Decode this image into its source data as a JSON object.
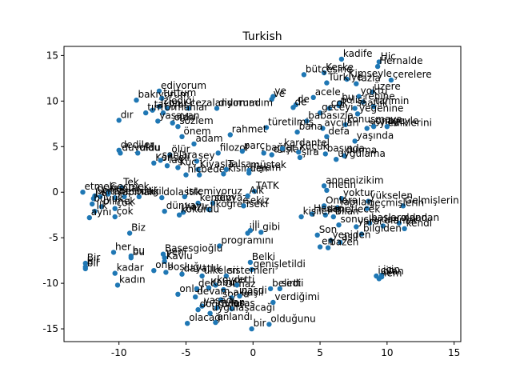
{
  "chart_data": {
    "type": "scatter",
    "title": "Turkish",
    "xlabel": "",
    "ylabel": "",
    "xlim": [
      -14.1,
      15.5
    ],
    "ylim": [
      -16.4,
      16.0
    ],
    "xticks": [
      -10,
      -5,
      0,
      5,
      10,
      15
    ],
    "yticks": [
      -15,
      -10,
      -5,
      0,
      5,
      10,
      15
    ],
    "grid": false,
    "point_color": "#1f77b4",
    "points": [
      {
        "x": 6.6,
        "y": 14.6,
        "label": "kadife"
      },
      {
        "x": 9.4,
        "y": 14.3,
        "label": "Hiç"
      },
      {
        "x": 9.3,
        "y": 13.8,
        "label": "Hernalde"
      },
      {
        "x": 5.3,
        "y": 13.1,
        "label": "Keske"
      },
      {
        "x": 3.8,
        "y": 12.9,
        "label": "bütçesine"
      },
      {
        "x": 7.0,
        "y": 12.4,
        "label": "Kimseyle"
      },
      {
        "x": 10.3,
        "y": 12.3,
        "label": "çerelere"
      },
      {
        "x": 5.5,
        "y": 12.0,
        "label": "Türkiye"
      },
      {
        "x": 7.7,
        "y": 11.9,
        "label": "fazla"
      },
      {
        "x": 8.9,
        "y": 11.0,
        "label": "üzere"
      },
      {
        "x": -7.0,
        "y": 11.1,
        "label": "ediyorum"
      },
      {
        "x": -8.7,
        "y": 10.1,
        "label": "bakıyorum"
      },
      {
        "x": -6.8,
        "y": 10.3,
        "label": "tuttum"
      },
      {
        "x": 1.5,
        "y": 10.5,
        "label": "ve"
      },
      {
        "x": 1.4,
        "y": 10.2,
        "label": "ve"
      },
      {
        "x": 3.2,
        "y": 9.6,
        "label": "de"
      },
      {
        "x": 3.0,
        "y": 9.3,
        "label": "de"
      },
      {
        "x": 4.5,
        "y": 10.4,
        "label": "acele"
      },
      {
        "x": 7.9,
        "y": 10.5,
        "label": "yoktu"
      },
      {
        "x": 8.2,
        "y": 9.9,
        "label": "rehine"
      },
      {
        "x": 6.5,
        "y": 9.8,
        "label": "bu"
      },
      {
        "x": 6.4,
        "y": 9.5,
        "label": "polisi"
      },
      {
        "x": 5.7,
        "y": 9.2,
        "label": "çok"
      },
      {
        "x": 7.6,
        "y": 9.2,
        "label": "saatlik"
      },
      {
        "x": 9.0,
        "y": 9.4,
        "label": "tahmin"
      },
      {
        "x": -7.0,
        "y": 9.4,
        "label": "izlediği"
      },
      {
        "x": -7.5,
        "y": 9.0,
        "label": "takiyor"
      },
      {
        "x": -6.4,
        "y": 9.2,
        "label": "onu"
      },
      {
        "x": -4.8,
        "y": 9.2,
        "label": "cezalandırmadım"
      },
      {
        "x": -2.7,
        "y": 9.2,
        "label": "diyorum"
      },
      {
        "x": -8.0,
        "y": 8.7,
        "label": "tım"
      },
      {
        "x": -6.7,
        "y": 8.7,
        "label": "ormanlar"
      },
      {
        "x": -10.0,
        "y": 7.9,
        "label": "dır"
      },
      {
        "x": -7.1,
        "y": 7.8,
        "label": "yaşayan"
      },
      {
        "x": -6.0,
        "y": 7.6,
        "label": "oldu"
      },
      {
        "x": -5.6,
        "y": 7.2,
        "label": "sözlem"
      },
      {
        "x": 5.0,
        "y": 8.7,
        "label": "geceyi"
      },
      {
        "x": 7.8,
        "y": 8.6,
        "label": "yeğenine"
      },
      {
        "x": 4.0,
        "y": 7.8,
        "label": "babasızla"
      },
      {
        "x": 6.9,
        "y": 7.4,
        "label": "konuşmaya"
      },
      {
        "x": 8.5,
        "y": 7.0,
        "label": "söylediklerini"
      },
      {
        "x": 9.0,
        "y": 7.2,
        "label": "onay"
      },
      {
        "x": 10.0,
        "y": 7.2,
        "label": "tgeyle"
      },
      {
        "x": 5.2,
        "y": 7.0,
        "label": "avcıları"
      },
      {
        "x": 1.0,
        "y": 7.1,
        "label": "türetilmiş"
      },
      {
        "x": 3.3,
        "y": 6.6,
        "label": "bana"
      },
      {
        "x": -1.7,
        "y": 6.3,
        "label": "rahmet"
      },
      {
        "x": -5.3,
        "y": 6.1,
        "label": "önem"
      },
      {
        "x": -4.4,
        "y": 5.3,
        "label": "adam"
      },
      {
        "x": 5.5,
        "y": 6.1,
        "label": "defa"
      },
      {
        "x": 7.6,
        "y": 5.6,
        "label": "yaşında"
      },
      {
        "x": -10.0,
        "y": 4.6,
        "label": "dediler"
      },
      {
        "x": -9.9,
        "y": 4.3,
        "label": "duyuldu"
      },
      {
        "x": -8.6,
        "y": 4.3,
        "label": "oldu"
      },
      {
        "x": -6.2,
        "y": 4.1,
        "label": "ölür"
      },
      {
        "x": -2.6,
        "y": 4.3,
        "label": "filozof"
      },
      {
        "x": -0.8,
        "y": 4.5,
        "label": "parç"
      },
      {
        "x": 0.8,
        "y": 4.3,
        "label": "bağlar"
      },
      {
        "x": 1.4,
        "y": 4.1,
        "label": "düşlar"
      },
      {
        "x": 2.2,
        "y": 4.8,
        "label": "kardantel"
      },
      {
        "x": 3.4,
        "y": 4.4,
        "label": "küçük"
      },
      {
        "x": 5.4,
        "y": 4.2,
        "label": "başında"
      },
      {
        "x": 6.8,
        "y": 4.0,
        "label": "durma"
      },
      {
        "x": 3.5,
        "y": 3.8,
        "label": "şira"
      },
      {
        "x": 6.2,
        "y": 3.6,
        "label": "uygulama"
      },
      {
        "x": -7.4,
        "y": 3.2,
        "label": "Konseli"
      },
      {
        "x": -6.9,
        "y": 3.5,
        "label": "şanlara"
      },
      {
        "x": -6.4,
        "y": 2.9,
        "label": "lag"
      },
      {
        "x": -4.2,
        "y": 3.4,
        "label": "şey"
      },
      {
        "x": -5.6,
        "y": 2.7,
        "label": "Küç"
      },
      {
        "x": -4.1,
        "y": 2.5,
        "label": "Kiyasla"
      },
      {
        "x": -5.0,
        "y": 1.9,
        "label": "hiç"
      },
      {
        "x": -4.0,
        "y": 1.9,
        "label": "bedel"
      },
      {
        "x": -2.2,
        "y": 2.0,
        "label": "ikisinden"
      },
      {
        "x": -2.0,
        "y": 2.5,
        "label": "Talsa"
      },
      {
        "x": -0.3,
        "y": 2.4,
        "label": "müştek"
      },
      {
        "x": -0.3,
        "y": 2.1,
        "label": "ilişkim"
      },
      {
        "x": -12.7,
        "y": 0.0,
        "label": "etmek"
      },
      {
        "x": -9.8,
        "y": 0.5,
        "label": "Tek"
      },
      {
        "x": -10.8,
        "y": 0.0,
        "label": "Geçmek"
      },
      {
        "x": -11.8,
        "y": -0.4,
        "label": "Sonra"
      },
      {
        "x": -10.8,
        "y": -0.2,
        "label": "bunlar"
      },
      {
        "x": -11.9,
        "y": -0.7,
        "label": "bu"
      },
      {
        "x": -11.4,
        "y": -0.5,
        "label": "kitap"
      },
      {
        "x": -9.6,
        "y": -0.5,
        "label": "etbirlik"
      },
      {
        "x": -8.5,
        "y": -0.5,
        "label": "değil"
      },
      {
        "x": -10.3,
        "y": -0.6,
        "label": "yapmak"
      },
      {
        "x": -12.0,
        "y": -1.3,
        "label": "büyük"
      },
      {
        "x": -11.3,
        "y": -1.6,
        "label": "bilmek"
      },
      {
        "x": -6.8,
        "y": -0.6,
        "label": "dolaştık"
      },
      {
        "x": -5.1,
        "y": -0.5,
        "label": "istemiyoruz"
      },
      {
        "x": -4.1,
        "y": -1.2,
        "label": "kendim"
      },
      {
        "x": -3.0,
        "y": -1.2,
        "label": "seyyaz"
      },
      {
        "x": -10.3,
        "y": -1.8,
        "label": "çok"
      },
      {
        "x": -11.8,
        "y": -2.1,
        "label": "İlk"
      },
      {
        "x": -12.2,
        "y": -2.8,
        "label": "aynı"
      },
      {
        "x": -10.3,
        "y": -2.7,
        "label": "çok"
      },
      {
        "x": -6.6,
        "y": -2.1,
        "label": "dünyayı"
      },
      {
        "x": -5.2,
        "y": -2.2,
        "label": "hazır"
      },
      {
        "x": -3.3,
        "y": -1.9,
        "label": "ilköğretiseki"
      },
      {
        "x": -5.5,
        "y": -2.5,
        "label": "kokurdu"
      },
      {
        "x": -0.7,
        "y": -1.5,
        "label": "sekiz"
      },
      {
        "x": 0.1,
        "y": 0.1,
        "label": "TATK"
      },
      {
        "x": -0.4,
        "y": -0.4,
        "label": "Alk"
      },
      {
        "x": 5.3,
        "y": 0.7,
        "label": "annenizikim"
      },
      {
        "x": 5.5,
        "y": 0.2,
        "label": "metin"
      },
      {
        "x": 6.6,
        "y": -0.7,
        "label": "yoktur"
      },
      {
        "x": 8.6,
        "y": -1.0,
        "label": "yükselen"
      },
      {
        "x": 11.2,
        "y": -1.5,
        "label": "Gelmişlerin"
      },
      {
        "x": 5.3,
        "y": -1.5,
        "label": "Onlara"
      },
      {
        "x": 6.3,
        "y": -1.7,
        "label": "Yapılan"
      },
      {
        "x": 8.5,
        "y": -1.8,
        "label": "geçmişlerin"
      },
      {
        "x": 4.4,
        "y": -2.4,
        "label": "Hesap"
      },
      {
        "x": 5.4,
        "y": -2.5,
        "label": "denetlecek"
      },
      {
        "x": 6.0,
        "y": -2.7,
        "label": "Bilan"
      },
      {
        "x": 3.6,
        "y": -2.7,
        "label": "kişiler"
      },
      {
        "x": 8.7,
        "y": -3.4,
        "label": "başlarından"
      },
      {
        "x": 10.9,
        "y": -3.4,
        "label": "olandan"
      },
      {
        "x": 6.4,
        "y": -3.6,
        "label": "sonuçlardan"
      },
      {
        "x": 7.7,
        "y": -3.8,
        "label": "yarar"
      },
      {
        "x": 9.7,
        "y": -3.7,
        "label": "olanlar"
      },
      {
        "x": 11.3,
        "y": -4.0,
        "label": "kendi"
      },
      {
        "x": 8.1,
        "y": -4.6,
        "label": "bilgiden"
      },
      {
        "x": 4.8,
        "y": -4.7,
        "label": "Son"
      },
      {
        "x": 5.8,
        "y": -5.3,
        "label": "yeniden"
      },
      {
        "x": 6.5,
        "y": -5.5,
        "label": "asıl"
      },
      {
        "x": 5.0,
        "y": -6.0,
        "label": "en"
      },
      {
        "x": 5.6,
        "y": -6.1,
        "label": "bazen"
      },
      {
        "x": -9.2,
        "y": -4.5,
        "label": "Biz"
      },
      {
        "x": -0.4,
        "y": -4.5,
        "label": "ili"
      },
      {
        "x": -0.2,
        "y": -4.2,
        "label": "ili"
      },
      {
        "x": 0.6,
        "y": -4.4,
        "label": "gibi"
      },
      {
        "x": -2.5,
        "y": -5.9,
        "label": "programını"
      },
      {
        "x": -10.4,
        "y": -6.6,
        "label": "her"
      },
      {
        "x": -9.1,
        "y": -7.0,
        "label": "bu"
      },
      {
        "x": -9.1,
        "y": -7.2,
        "label": "bu"
      },
      {
        "x": -6.7,
        "y": -6.8,
        "label": "Başesgioğlu"
      },
      {
        "x": -6.6,
        "y": -7.2,
        "label": "yeni"
      },
      {
        "x": -6.6,
        "y": -7.6,
        "label": "Kavlu"
      },
      {
        "x": -0.2,
        "y": -7.7,
        "label": "Belki"
      },
      {
        "x": -0.1,
        "y": -8.5,
        "label": "genişletildi"
      },
      {
        "x": -12.5,
        "y": -7.8,
        "label": "Bir"
      },
      {
        "x": -12.5,
        "y": -8.2,
        "label": "bir"
      },
      {
        "x": -12.5,
        "y": -8.4,
        "label": "bir"
      },
      {
        "x": -10.3,
        "y": -8.9,
        "label": "kadar"
      },
      {
        "x": -7.4,
        "y": -8.6,
        "label": "onu"
      },
      {
        "x": -6.5,
        "y": -8.8,
        "label": "boşluğu"
      },
      {
        "x": -5.3,
        "y": -9.0,
        "label": "dayatlık"
      },
      {
        "x": -3.8,
        "y": -9.2,
        "label": "ülkeleri"
      },
      {
        "x": -2.0,
        "y": -9.2,
        "label": "sistemleri"
      },
      {
        "x": -10.1,
        "y": -10.2,
        "label": "kadın"
      },
      {
        "x": 9.6,
        "y": -9.1,
        "label": "için"
      },
      {
        "x": 9.2,
        "y": -9.2,
        "label": "için"
      },
      {
        "x": 9.4,
        "y": -9.5,
        "label": "hem"
      },
      {
        "x": 9.6,
        "y": -9.3,
        "label": "olan"
      },
      {
        "x": -5.6,
        "y": -11.2,
        "label": "onlar"
      },
      {
        "x": -4.2,
        "y": -10.6,
        "label": "dedi"
      },
      {
        "x": -2.8,
        "y": -10.2,
        "label": "koydu"
      },
      {
        "x": -3.3,
        "y": -10.5,
        "label": "Kabul"
      },
      {
        "x": -2.2,
        "y": -10.7,
        "label": "Olmaz"
      },
      {
        "x": -1.2,
        "y": -10.2,
        "label": "etti"
      },
      {
        "x": 1.3,
        "y": -10.6,
        "label": "belirtti"
      },
      {
        "x": 2.0,
        "y": -10.6,
        "label": "sedi"
      },
      {
        "x": -4.3,
        "y": -11.5,
        "label": "devam"
      },
      {
        "x": -2.4,
        "y": -11.8,
        "label": "sonra"
      },
      {
        "x": -1.6,
        "y": -11.6,
        "label": "aklaşlı"
      },
      {
        "x": -1.0,
        "y": -11.4,
        "label": "paşdi"
      },
      {
        "x": 1.5,
        "y": -12.1,
        "label": "verdiğimi"
      },
      {
        "x": -3.8,
        "y": -12.5,
        "label": "yaşadı"
      },
      {
        "x": -4.1,
        "y": -12.9,
        "label": "doğrudur"
      },
      {
        "x": -2.7,
        "y": -12.7,
        "label": "gulan"
      },
      {
        "x": -1.6,
        "y": -12.8,
        "label": "esas"
      },
      {
        "x": -4.9,
        "y": -14.4,
        "label": "olacağı"
      },
      {
        "x": -2.8,
        "y": -14.3,
        "label": "anlandı"
      },
      {
        "x": -3.2,
        "y": -13.3,
        "label": "uygulaşacağı"
      },
      {
        "x": 1.2,
        "y": -14.5,
        "label": "olduğunu"
      },
      {
        "x": -0.1,
        "y": -15.0,
        "label": "bir"
      }
    ]
  }
}
